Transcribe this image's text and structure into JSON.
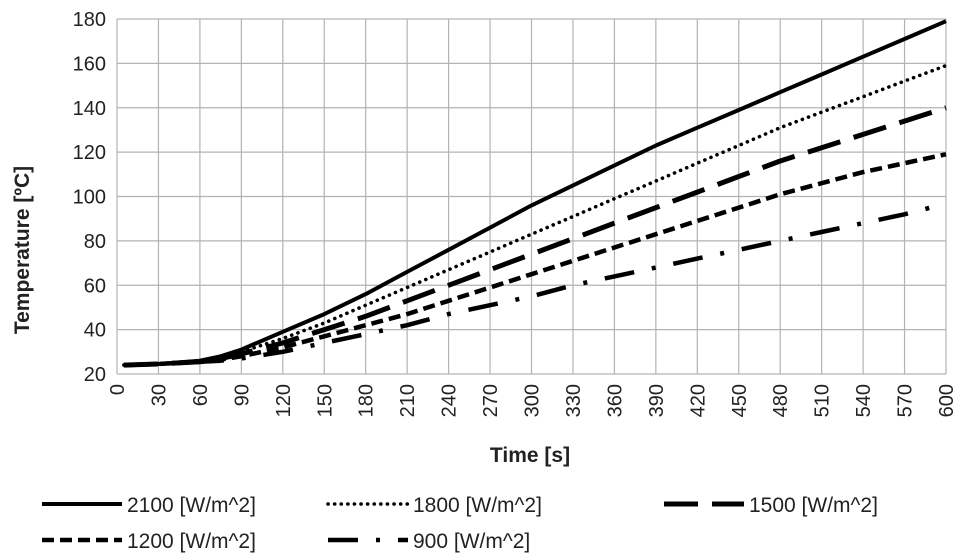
{
  "chart_data": {
    "type": "line",
    "title": "",
    "xlabel": "Time [s]",
    "ylabel": "Temperature [ºC]",
    "xlim": [
      0,
      600
    ],
    "ylim": [
      20,
      180
    ],
    "xticks": [
      "0",
      "30",
      "60",
      "90",
      "120",
      "150",
      "180",
      "210",
      "240",
      "270",
      "300",
      "330",
      "360",
      "390",
      "420",
      "450",
      "480",
      "510",
      "540",
      "570",
      "600"
    ],
    "yticks": [
      "20",
      "40",
      "60",
      "80",
      "100",
      "120",
      "140",
      "160",
      "180"
    ],
    "grid": true,
    "legend_position": "bottom",
    "series": [
      {
        "name": "2100 [W/m^2]",
        "style": "solid",
        "x": [
          5,
          30,
          60,
          75,
          90,
          120,
          150,
          180,
          210,
          240,
          270,
          300,
          330,
          360,
          390,
          420,
          450,
          480,
          510,
          540,
          570,
          600
        ],
        "y": [
          24,
          24.5,
          26,
          28,
          31,
          39,
          47,
          56,
          66,
          76,
          86,
          96,
          105,
          114,
          123,
          131,
          139,
          147,
          155,
          163,
          171,
          179
        ]
      },
      {
        "name": "1800 [W/m^2]",
        "style": "dotted",
        "x": [
          5,
          30,
          60,
          75,
          90,
          120,
          150,
          180,
          210,
          240,
          270,
          300,
          330,
          360,
          390,
          420,
          450,
          480,
          510,
          540,
          570,
          600
        ],
        "y": [
          24,
          24.5,
          26,
          27.5,
          30,
          36,
          43,
          51,
          59,
          67,
          75,
          83,
          91,
          99,
          107,
          115,
          123,
          131,
          138,
          145,
          152,
          159
        ]
      },
      {
        "name": "1500 [W/m^2]",
        "style": "long-dash",
        "x": [
          5,
          30,
          60,
          75,
          90,
          120,
          150,
          180,
          210,
          240,
          270,
          300,
          330,
          360,
          390,
          420,
          450,
          480,
          510,
          540,
          570,
          600
        ],
        "y": [
          24,
          24.5,
          25.5,
          27,
          29,
          34,
          40,
          46,
          53,
          60,
          67,
          74,
          81,
          88,
          95,
          102,
          109,
          116,
          122,
          128,
          134,
          140
        ]
      },
      {
        "name": "1200 [W/m^2]",
        "style": "short-dash",
        "x": [
          5,
          30,
          60,
          75,
          90,
          120,
          150,
          180,
          210,
          240,
          270,
          300,
          330,
          360,
          390,
          420,
          450,
          480,
          510,
          540,
          570,
          600
        ],
        "y": [
          24,
          24.5,
          25.5,
          26.5,
          28,
          32,
          37,
          42,
          47,
          53,
          59,
          65,
          71,
          77,
          83,
          89,
          95,
          101,
          106,
          111,
          115,
          119
        ]
      },
      {
        "name": "900 [W/m^2]",
        "style": "dash-dot",
        "x": [
          5,
          30,
          60,
          75,
          90,
          120,
          150,
          180,
          210,
          240,
          270,
          300,
          330,
          360,
          390,
          420,
          450,
          480,
          510,
          540,
          570,
          595
        ],
        "y": [
          24,
          24.5,
          25.5,
          26,
          27,
          30,
          34,
          38,
          42,
          47,
          51,
          55,
          60,
          64,
          68,
          72,
          76,
          80,
          84,
          88,
          92,
          96
        ]
      }
    ]
  }
}
